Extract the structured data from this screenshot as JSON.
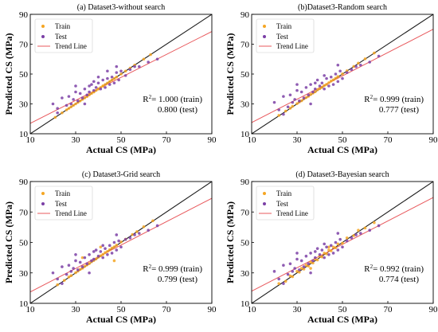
{
  "colors": {
    "train": "#f5a623",
    "test": "#7b3fa6",
    "trend": "#e8585c",
    "identity": "#1a1a1a"
  },
  "chart_data": [
    {
      "type": "scatter",
      "title": "(a) Dataset3-without search",
      "xlabel": "Actual CS (MPa)",
      "ylabel": "Predicted CS (MPa)",
      "xlim": [
        10,
        90
      ],
      "ylim": [
        10,
        90
      ],
      "xticks": [
        "10",
        "30",
        "50",
        "70",
        "90"
      ],
      "yticks": [
        "10",
        "30",
        "50",
        "70",
        "90"
      ],
      "legend": {
        "train": "Train",
        "test": "Test",
        "trend": "Trend Line"
      },
      "r2_train": "= 1.000 (train)",
      "r2_test": "0.800 (test)",
      "trend_line": {
        "x": [
          10,
          90
        ],
        "y": [
          17.0,
          78.5
        ]
      },
      "train": {
        "x": [
          21,
          24,
          26,
          27,
          28,
          29,
          30,
          31,
          32,
          33,
          34,
          35,
          35,
          36,
          37,
          38,
          38,
          39,
          40,
          40,
          41,
          42,
          42,
          43,
          44,
          45,
          46,
          47,
          48,
          50,
          52,
          54,
          56,
          60,
          63
        ],
        "y": [
          21,
          24,
          26,
          27,
          28,
          29,
          30,
          31,
          32,
          33,
          34,
          35,
          35,
          36,
          37,
          38,
          38,
          39,
          40,
          40,
          41,
          42,
          42,
          43,
          44,
          45,
          46,
          47,
          48,
          50,
          52,
          54,
          56,
          60,
          63
        ]
      },
      "test": {
        "x": [
          20,
          22,
          24,
          26,
          27,
          28,
          29,
          30,
          31,
          32,
          33,
          34,
          35,
          36,
          36,
          37,
          38,
          38,
          39,
          40,
          41,
          42,
          43,
          44,
          45,
          46,
          47,
          48,
          49,
          50,
          52,
          54,
          56,
          58,
          62,
          66,
          22,
          30,
          34,
          40,
          44,
          48
        ],
        "y": [
          30,
          27,
          34,
          29,
          35,
          30,
          33,
          38,
          32,
          37,
          34,
          40,
          36,
          42,
          38,
          43,
          39,
          45,
          41,
          44,
          40,
          46,
          41,
          47,
          43,
          48,
          44,
          51,
          46,
          52,
          49,
          53,
          55,
          55,
          58,
          60,
          24,
          42,
          30,
          48,
          52,
          55
        ]
      }
    },
    {
      "type": "scatter",
      "title": "(b)Dataset3-Random search",
      "xlabel": "Actual CS (MPa)",
      "ylabel": "Predicted CS (MPa)",
      "xlim": [
        10,
        90
      ],
      "ylim": [
        10,
        90
      ],
      "xticks": [
        "10",
        "30",
        "50",
        "70",
        "90"
      ],
      "yticks": [
        "10",
        "30",
        "50",
        "70",
        "90"
      ],
      "legend": {
        "train": "Train",
        "test": "Test",
        "trend": "Trend Line"
      },
      "r2_train": "= 0.999 (train)",
      "r2_test": "0.777 (test)",
      "trend_line": {
        "x": [
          10,
          90
        ],
        "y": [
          17.5,
          80.0
        ]
      },
      "train": {
        "x": [
          22,
          25,
          27,
          28,
          30,
          31,
          32,
          33,
          34,
          35,
          36,
          37,
          38,
          39,
          40,
          41,
          42,
          43,
          44,
          45,
          46,
          47,
          48,
          50,
          52,
          55,
          57,
          60,
          64
        ],
        "y": [
          22.3,
          25.2,
          27.1,
          28.4,
          30.2,
          31.3,
          32.1,
          33.4,
          34.2,
          35.1,
          36.3,
          37.2,
          38.1,
          39.4,
          40.2,
          41.1,
          42.3,
          43.1,
          44.2,
          45.3,
          46.1,
          47.2,
          48.3,
          50.1,
          52.2,
          55.1,
          57.3,
          60.2,
          64.1
        ]
      },
      "test": {
        "x": [
          20,
          22,
          24,
          26,
          27,
          28,
          29,
          30,
          31,
          32,
          33,
          34,
          35,
          36,
          37,
          38,
          38,
          39,
          40,
          41,
          42,
          43,
          44,
          45,
          46,
          47,
          48,
          49,
          50,
          52,
          54,
          56,
          58,
          62,
          66,
          24,
          30,
          36,
          42,
          48
        ],
        "y": [
          31,
          26,
          35,
          28,
          36,
          31,
          33,
          39,
          32,
          38,
          34,
          41,
          36,
          43,
          38,
          44,
          40,
          46,
          42,
          44,
          40,
          47,
          42,
          48,
          43,
          50,
          45,
          52,
          47,
          51,
          53,
          55,
          56,
          58,
          62,
          23,
          43,
          30,
          49,
          56
        ]
      }
    },
    {
      "type": "scatter",
      "title": "(c) Dataset3-Grid search",
      "xlabel": "Actual CS (MPa)",
      "ylabel": "Predicted CS (MPa)",
      "xlim": [
        10,
        90
      ],
      "ylim": [
        10,
        90
      ],
      "xticks": [
        "10",
        "30",
        "50",
        "70",
        "90"
      ],
      "yticks": [
        "10",
        "30",
        "50",
        "70",
        "90"
      ],
      "legend": {
        "train": "Train",
        "test": "Test",
        "trend": "Trend Line"
      },
      "r2_train": "= 0.999 (train)",
      "r2_test": "0.799 (test)",
      "trend_line": {
        "x": [
          10,
          90
        ],
        "y": [
          17.5,
          79.0
        ]
      },
      "train": {
        "x": [
          22,
          25,
          27,
          28,
          30,
          31,
          32,
          33,
          34,
          35,
          36,
          37,
          38,
          39,
          40,
          41,
          42,
          43,
          44,
          45,
          46,
          47,
          48,
          50,
          52,
          55,
          57,
          60,
          64,
          33,
          41,
          47
        ],
        "y": [
          22.2,
          25.1,
          27.3,
          28.2,
          30.1,
          31.2,
          32.3,
          33.1,
          34.3,
          35.2,
          36.1,
          37.3,
          38.2,
          39.1,
          40.3,
          41.2,
          42.1,
          43.3,
          44.1,
          45.2,
          46.3,
          47.1,
          48.2,
          50.3,
          52.1,
          55.2,
          57.1,
          60.3,
          64.2,
          40,
          47,
          38
        ]
      },
      "test": {
        "x": [
          20,
          22,
          24,
          26,
          27,
          28,
          29,
          30,
          31,
          32,
          33,
          34,
          35,
          36,
          37,
          38,
          38,
          39,
          40,
          41,
          42,
          43,
          44,
          45,
          46,
          47,
          48,
          49,
          50,
          52,
          54,
          56,
          58,
          62,
          66,
          24,
          30,
          36,
          42,
          48
        ],
        "y": [
          30,
          26,
          34,
          29,
          35,
          31,
          33,
          38,
          32,
          37,
          34,
          40,
          36,
          42,
          38,
          44,
          39,
          45,
          41,
          44,
          40,
          46,
          42,
          48,
          43,
          50,
          45,
          51,
          47,
          52,
          53,
          55,
          56,
          58,
          61,
          23,
          42,
          30,
          48,
          55
        ]
      }
    },
    {
      "type": "scatter",
      "title": "(d) Dataset3-Bayesian search",
      "xlabel": "Actual CS (MPa)",
      "ylabel": "Predicted CS (MPa)",
      "xlim": [
        10,
        90
      ],
      "ylim": [
        10,
        90
      ],
      "xticks": [
        "10",
        "30",
        "50",
        "70",
        "90"
      ],
      "yticks": [
        "10",
        "30",
        "50",
        "70",
        "90"
      ],
      "legend": {
        "train": "Train",
        "test": "Test",
        "trend": "Trend Line"
      },
      "r2_train": "= 0.992 (train)",
      "r2_test": "0.774 (test)",
      "trend_line": {
        "x": [
          10,
          90
        ],
        "y": [
          18.0,
          79.5
        ]
      },
      "train": {
        "x": [
          22,
          25,
          27,
          28,
          30,
          31,
          32,
          33,
          34,
          35,
          36,
          37,
          38,
          39,
          40,
          41,
          42,
          43,
          44,
          45,
          46,
          47,
          48,
          50,
          52,
          55,
          57,
          60,
          64,
          36,
          44
        ],
        "y": [
          23,
          24.5,
          28,
          27.5,
          31,
          30.5,
          33,
          32.5,
          35,
          34.5,
          37,
          36.5,
          39,
          38.5,
          41,
          40.5,
          43,
          42.5,
          45,
          44.5,
          47,
          46.5,
          49,
          49.5,
          53,
          54.5,
          58,
          59.5,
          63,
          33,
          47
        ]
      },
      "test": {
        "x": [
          20,
          22,
          24,
          26,
          27,
          28,
          29,
          30,
          31,
          32,
          33,
          34,
          35,
          36,
          37,
          38,
          38,
          39,
          40,
          41,
          42,
          43,
          44,
          45,
          46,
          47,
          48,
          49,
          50,
          52,
          54,
          56,
          58,
          62,
          66,
          24,
          30,
          36,
          42,
          48
        ],
        "y": [
          31,
          26,
          35,
          29,
          36,
          31,
          33,
          39,
          32,
          38,
          34,
          41,
          36,
          43,
          38,
          44,
          40,
          46,
          42,
          45,
          40,
          47,
          42,
          48,
          43,
          50,
          45,
          52,
          47,
          51,
          53,
          55,
          56,
          58,
          61,
          23,
          43,
          30,
          49,
          56
        ]
      }
    }
  ]
}
